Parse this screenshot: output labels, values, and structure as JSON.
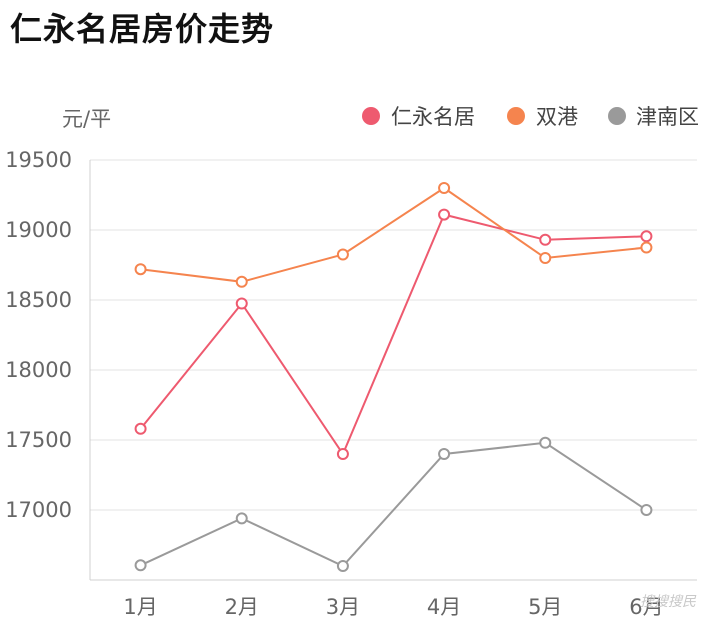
{
  "title": "仁永名居房价走势",
  "colors": {
    "series": [
      "#ee5a6f",
      "#f5844e",
      "#9a9a9a"
    ],
    "grid": "#e3e3e3",
    "axis": "#d0d0d0",
    "text": "#666666"
  },
  "chart_data": {
    "type": "line",
    "title": "仁永名居房价走势",
    "ylabel": "元/平",
    "xlabel": "",
    "categories": [
      "1月",
      "2月",
      "3月",
      "4月",
      "5月",
      "6月"
    ],
    "ylim": [
      16500,
      19500
    ],
    "yticks": [
      17000,
      17500,
      18000,
      18500,
      19000,
      19500
    ],
    "grid": true,
    "legend": "top-right",
    "series": [
      {
        "name": "仁永名居",
        "values": [
          17580,
          18475,
          17400,
          19110,
          18930,
          18955
        ]
      },
      {
        "name": "双港",
        "values": [
          18720,
          18630,
          18825,
          19300,
          18800,
          18875
        ]
      },
      {
        "name": "津南区",
        "values": [
          16605,
          16940,
          16600,
          17400,
          17480,
          17000
        ]
      }
    ]
  },
  "watermark": "搜搜搜民"
}
